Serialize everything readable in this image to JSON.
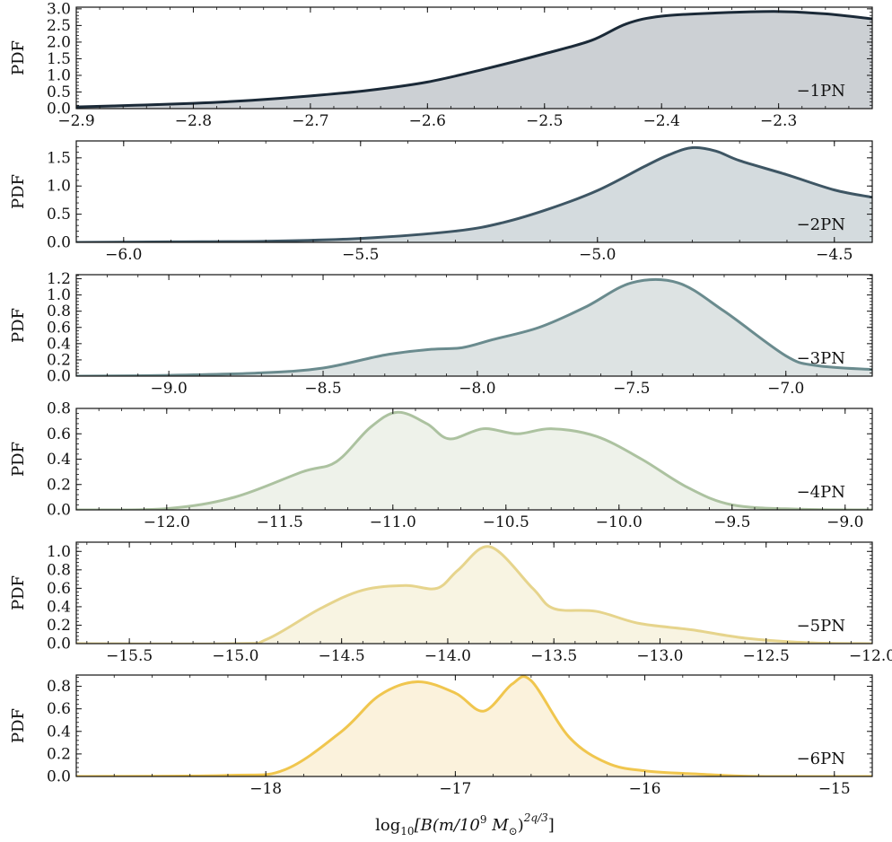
{
  "figure": {
    "xlabel": "log₁₀[B(m/10⁹ M⊙)²ᵠᐟ³]",
    "xlabel_main": "log",
    "xlabel_sub": "10",
    "xlabel_rest": "[B(m/10",
    "xlabel_sup": "9",
    "xlabel_tail": " M",
    "xlabel_odot": "⊙",
    "xlabel_close": ")",
    "xlabel_exp": "2q/3",
    "xlabel_end": "]"
  },
  "chart_data": [
    {
      "type": "area",
      "annotation": "−1PN",
      "ylabel": "PDF",
      "color": "#1b2a38",
      "fill": "#ccd0d4",
      "xlim": [
        -2.9,
        -2.22
      ],
      "ylim": [
        0.0,
        3.05
      ],
      "xticks": [
        -2.9,
        -2.8,
        -2.7,
        -2.6,
        -2.5,
        -2.4,
        -2.3
      ],
      "xtick_labels": [
        "−2.9",
        "−2.8",
        "−2.7",
        "−2.6",
        "−2.5",
        "−2.4",
        "−2.3"
      ],
      "yticks": [
        0.0,
        0.5,
        1.0,
        1.5,
        2.0,
        2.5,
        3.0
      ],
      "ytick_labels": [
        "0.0",
        "0.5",
        "1.0",
        "1.5",
        "2.0",
        "2.5",
        "3.0"
      ],
      "x": [
        -2.9,
        -2.85,
        -2.8,
        -2.75,
        -2.7,
        -2.65,
        -2.6,
        -2.55,
        -2.5,
        -2.46,
        -2.43,
        -2.4,
        -2.35,
        -2.3,
        -2.26,
        -2.22
      ],
      "y": [
        0.05,
        0.1,
        0.16,
        0.25,
        0.38,
        0.55,
        0.8,
        1.2,
        1.65,
        2.05,
        2.55,
        2.78,
        2.88,
        2.92,
        2.85,
        2.7
      ]
    },
    {
      "type": "area",
      "annotation": "−2PN",
      "ylabel": "PDF",
      "color": "#3e5664",
      "fill": "#d4dbde",
      "xlim": [
        -6.1,
        -4.42
      ],
      "ylim": [
        0.0,
        1.8
      ],
      "xticks": [
        -6.0,
        -5.5,
        -5.0,
        -4.5
      ],
      "xtick_labels": [
        "−6.0",
        "−5.5",
        "−5.0",
        "−4.5"
      ],
      "yticks": [
        0.0,
        0.5,
        1.0,
        1.5
      ],
      "ytick_labels": [
        "0.0",
        "0.5",
        "1.0",
        "1.5"
      ],
      "x": [
        -6.1,
        -5.9,
        -5.7,
        -5.5,
        -5.3,
        -5.2,
        -5.1,
        -5.0,
        -4.9,
        -4.85,
        -4.8,
        -4.75,
        -4.7,
        -4.6,
        -4.5,
        -4.42
      ],
      "y": [
        0.0,
        0.01,
        0.02,
        0.07,
        0.2,
        0.35,
        0.6,
        0.92,
        1.35,
        1.55,
        1.68,
        1.62,
        1.45,
        1.2,
        0.93,
        0.8
      ]
    },
    {
      "type": "area",
      "annotation": "−3PN",
      "ylabel": "PDF",
      "color": "#6a8b8e",
      "fill": "#dde3e3",
      "xlim": [
        -9.3,
        -6.72
      ],
      "ylim": [
        0.0,
        1.25
      ],
      "xticks": [
        -9.0,
        -8.5,
        -8.0,
        -7.5,
        -7.0
      ],
      "xtick_labels": [
        "−9.0",
        "−8.5",
        "−8.0",
        "−7.5",
        "−7.0"
      ],
      "yticks": [
        0.0,
        0.2,
        0.4,
        0.6,
        0.8,
        1.0,
        1.2
      ],
      "ytick_labels": [
        "0.0",
        "0.2",
        "0.4",
        "0.6",
        "0.8",
        "1.0",
        "1.2"
      ],
      "x": [
        -9.3,
        -9.0,
        -8.7,
        -8.5,
        -8.3,
        -8.15,
        -8.05,
        -7.95,
        -7.8,
        -7.65,
        -7.5,
        -7.35,
        -7.2,
        -7.0,
        -6.9,
        -6.72
      ],
      "y": [
        0.0,
        0.01,
        0.04,
        0.1,
        0.26,
        0.33,
        0.35,
        0.45,
        0.6,
        0.85,
        1.15,
        1.15,
        0.8,
        0.25,
        0.13,
        0.08
      ]
    },
    {
      "type": "area",
      "annotation": "−4PN",
      "ylabel": "PDF",
      "color": "#acc2a0",
      "fill": "#eef2ea",
      "xlim": [
        -12.4,
        -8.88
      ],
      "ylim": [
        0.0,
        0.8
      ],
      "xticks": [
        -12.0,
        -11.5,
        -11.0,
        -10.5,
        -10.0,
        -9.5,
        -9.0
      ],
      "xtick_labels": [
        "−12.0",
        "−11.5",
        "−11.0",
        "−10.5",
        "−10.0",
        "−9.5",
        "−9.0"
      ],
      "yticks": [
        0.0,
        0.2,
        0.4,
        0.6,
        0.8
      ],
      "ytick_labels": [
        "0.0",
        "0.2",
        "0.4",
        "0.6",
        "0.8"
      ],
      "x": [
        -12.4,
        -12.0,
        -11.7,
        -11.4,
        -11.25,
        -11.1,
        -10.98,
        -10.85,
        -10.75,
        -10.6,
        -10.45,
        -10.3,
        -10.1,
        -9.9,
        -9.7,
        -9.5,
        -9.2,
        -8.88
      ],
      "y": [
        0.0,
        0.01,
        0.1,
        0.3,
        0.38,
        0.65,
        0.77,
        0.68,
        0.56,
        0.64,
        0.6,
        0.64,
        0.58,
        0.4,
        0.18,
        0.04,
        0.005,
        0.0
      ]
    },
    {
      "type": "area",
      "annotation": "−5PN",
      "ylabel": "PDF",
      "color": "#e6d48c",
      "fill": "#f8f4e2",
      "xlim": [
        -15.75,
        -12.0
      ],
      "ylim": [
        0.0,
        1.1
      ],
      "xticks": [
        -15.5,
        -15.0,
        -14.5,
        -14.0,
        -13.5,
        -13.0,
        -12.5,
        -12.0
      ],
      "xtick_labels": [
        "−15.5",
        "−15.0",
        "−14.5",
        "−14.0",
        "−13.5",
        "−13.0",
        "−12.5",
        "−12.0"
      ],
      "yticks": [
        0.0,
        0.2,
        0.4,
        0.6,
        0.8,
        1.0
      ],
      "ytick_labels": [
        "0.0",
        "0.2",
        "0.4",
        "0.6",
        "0.8",
        "1.0"
      ],
      "x": [
        -15.75,
        -15.0,
        -14.85,
        -14.6,
        -14.4,
        -14.2,
        -14.05,
        -13.95,
        -13.8,
        -13.6,
        -13.5,
        -13.3,
        -13.1,
        -12.85,
        -12.6,
        -12.3,
        -12.0
      ],
      "y": [
        0.0,
        0.0,
        0.05,
        0.38,
        0.58,
        0.63,
        0.6,
        0.8,
        1.05,
        0.6,
        0.38,
        0.35,
        0.22,
        0.15,
        0.06,
        0.01,
        0.0
      ]
    },
    {
      "type": "area",
      "annotation": "−6PN",
      "ylabel": "PDF",
      "color": "#f0c64e",
      "fill": "#fbf2dc",
      "xlim": [
        -19.0,
        -14.8
      ],
      "ylim": [
        0.0,
        0.9
      ],
      "xticks": [
        -18.0,
        -17.0,
        -16.0,
        -15.0
      ],
      "xtick_labels": [
        "−18",
        "−17",
        "−16",
        "−15"
      ],
      "yticks": [
        0.0,
        0.2,
        0.4,
        0.6,
        0.8
      ],
      "ytick_labels": [
        "0.0",
        "0.2",
        "0.4",
        "0.6",
        "0.8"
      ],
      "x": [
        -19.0,
        -18.2,
        -17.9,
        -17.6,
        -17.4,
        -17.2,
        -17.0,
        -16.85,
        -16.7,
        -16.6,
        -16.4,
        -16.2,
        -16.0,
        -15.7,
        -15.4,
        -14.8
      ],
      "y": [
        0.0,
        0.01,
        0.06,
        0.4,
        0.72,
        0.84,
        0.74,
        0.58,
        0.82,
        0.85,
        0.35,
        0.12,
        0.05,
        0.02,
        0.0,
        0.0
      ]
    }
  ]
}
